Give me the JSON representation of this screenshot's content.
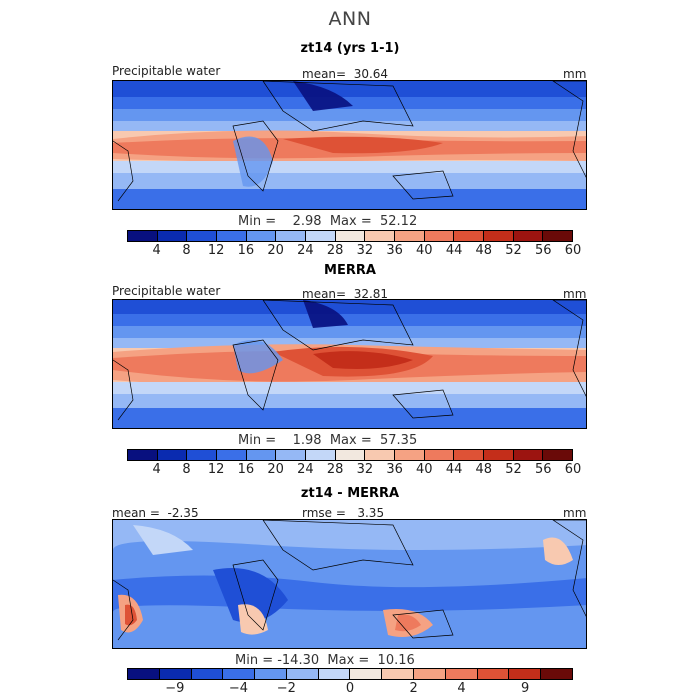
{
  "main_title": "ANN",
  "colors": {
    "abs_scale": [
      "#08107f",
      "#0a2bb0",
      "#1f4fd6",
      "#3a6fe8",
      "#6496f0",
      "#95b8f5",
      "#c3d7f8",
      "#f2e8df",
      "#f8c9b0",
      "#f5a283",
      "#ee7a5d",
      "#de5236",
      "#c42e1a",
      "#9c1410",
      "#6a0a08"
    ],
    "diff_scale": [
      "#08107f",
      "#0a2bb0",
      "#1f4fd6",
      "#3a6fe8",
      "#6496f0",
      "#95b8f5",
      "#c3d7f8",
      "#f2e8df",
      "#f8c9b0",
      "#f5a283",
      "#ee7a5d",
      "#de5236",
      "#c42e1a",
      "#6a0a08"
    ]
  },
  "panels": {
    "model": {
      "title": "zt14 (yrs 1-1)",
      "left_label": "Precipitable water",
      "mean_label": "mean=  30.64",
      "unit": "mm",
      "min_max": "Min =    2.98  Max =  52.12"
    },
    "obs": {
      "title": "MERRA",
      "left_label": "Precipitable water",
      "mean_label": "mean=  32.81",
      "unit": "mm",
      "min_max": "Min =    1.98  Max =  57.35"
    },
    "diff": {
      "title": "zt14 - MERRA",
      "left_label": "mean =  -2.35",
      "mean_label": "rmse =   3.35",
      "unit": "mm",
      "min_max": "Min = -14.30  Max =  10.16"
    }
  },
  "abs_ticks": [
    "4",
    "8",
    "12",
    "16",
    "20",
    "24",
    "28",
    "32",
    "36",
    "40",
    "44",
    "48",
    "52",
    "56",
    "60"
  ],
  "diff_ticks": [
    "−9",
    "−4",
    "−2",
    "0",
    "2",
    "4",
    "9"
  ]
}
